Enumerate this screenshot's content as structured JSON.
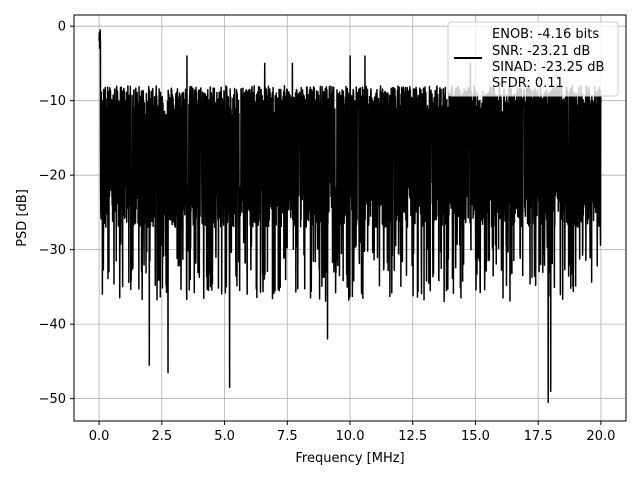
{
  "chart_data": {
    "type": "line",
    "xlabel": "Frequency [MHz]",
    "ylabel": "PSD [dB]",
    "xlim": [
      -1.0,
      21.0
    ],
    "ylim": [
      -53.0,
      1.5
    ],
    "xticks": [
      0.0,
      2.5,
      5.0,
      7.5,
      10.0,
      12.5,
      15.0,
      17.5,
      20.0
    ],
    "xtick_labels": [
      "0.0",
      "2.5",
      "5.0",
      "7.5",
      "10.0",
      "12.5",
      "15.0",
      "17.5",
      "20.0"
    ],
    "yticks": [
      0,
      -10,
      -20,
      -30,
      -40,
      -50
    ],
    "ytick_labels": [
      "0",
      "−10",
      "−20",
      "−30",
      "−40",
      "−50"
    ],
    "grid": true,
    "legend_position": "top-right",
    "series": [
      {
        "color": "#000000",
        "x_range": [
          0.0,
          20.0
        ],
        "spectrum_peak_db": 0.0,
        "dense_band_db": [
          -27,
          -10
        ],
        "dense_noise_floor_db": -20,
        "tall_spike_frequencies_mhz": [
          3.5,
          6.6,
          7.7,
          10.0,
          10.6,
          14.8
        ],
        "tall_spike_levels_db": [
          -4,
          -5,
          -5,
          -4,
          -4,
          -5
        ],
        "deep_null_frequencies_mhz": [
          2.0,
          2.75,
          5.2,
          9.1,
          17.9,
          18.0
        ],
        "deep_null_levels_db": [
          -45.5,
          -46.5,
          -48.5,
          -42,
          -50.5,
          -49
        ],
        "legend_lines": [
          "ENOB: -4.16 bits",
          "SNR: -23.21 dB",
          "SINAD: -23.25 dB",
          "SFDR: 0.11"
        ]
      }
    ]
  }
}
